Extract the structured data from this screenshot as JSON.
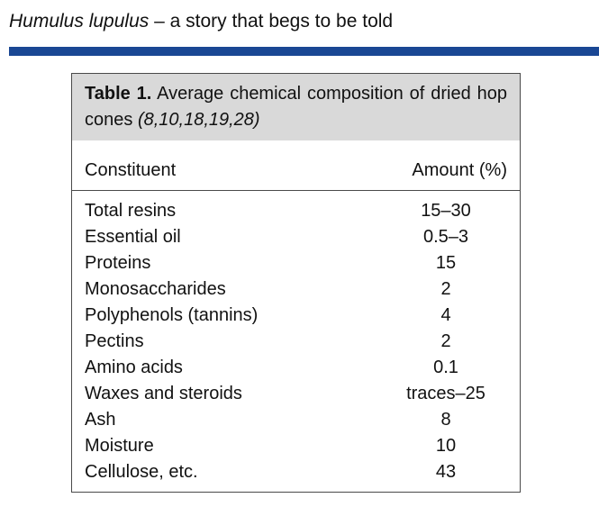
{
  "running_head": {
    "species": "Humulus lupulus",
    "rest": " – a story that begs to be told"
  },
  "colors": {
    "rule": "#1a4794",
    "caption_background": "#d9d9d9"
  },
  "table": {
    "label": "Table 1.",
    "title": " Average chemical composition of dried hop cones ",
    "refs": "(8,10,18,19,28)",
    "headers": {
      "constituent": "Constituent",
      "amount": "Amount (%)"
    },
    "rows": [
      {
        "name": "Total resins",
        "value": "15–30"
      },
      {
        "name": "Essential oil",
        "value": "0.5–3"
      },
      {
        "name": "Proteins",
        "value": "15"
      },
      {
        "name": "Monosaccharides",
        "value": "2"
      },
      {
        "name": "Polyphenols (tannins)",
        "value": "4"
      },
      {
        "name": "Pectins",
        "value": "2"
      },
      {
        "name": "Amino acids",
        "value": "0.1"
      },
      {
        "name": "Waxes and steroids",
        "value": "traces–25"
      },
      {
        "name": "Ash",
        "value": "8"
      },
      {
        "name": "Moisture",
        "value": "10"
      },
      {
        "name": "Cellulose, etc.",
        "value": "43"
      }
    ]
  }
}
